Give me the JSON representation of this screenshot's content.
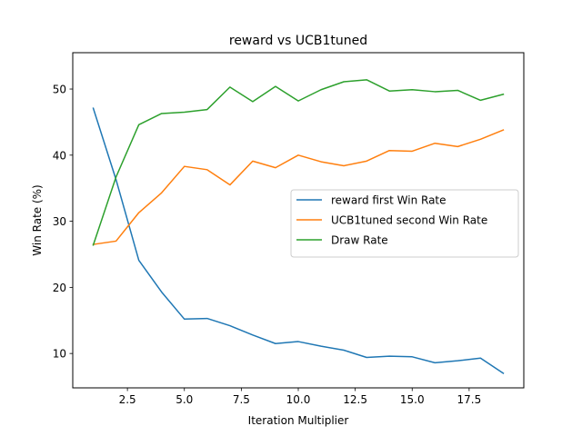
{
  "chart_data": {
    "type": "line",
    "title": "reward vs UCB1tuned",
    "xlabel": "Iteration Multiplier",
    "ylabel": "Win Rate (%)",
    "xlim": [
      0.1,
      19.9
    ],
    "ylim": [
      4.8,
      55.5
    ],
    "xticks": [
      2.5,
      5.0,
      7.5,
      10.0,
      12.5,
      15.0,
      17.5
    ],
    "xtick_labels": [
      "2.5",
      "5.0",
      "7.5",
      "10.0",
      "12.5",
      "15.0",
      "17.5"
    ],
    "yticks": [
      10,
      20,
      30,
      40,
      50
    ],
    "ytick_labels": [
      "10",
      "20",
      "30",
      "40",
      "50"
    ],
    "grid": false,
    "legend_position": "center-right",
    "x": [
      1,
      2,
      3,
      4,
      5,
      6,
      7,
      8,
      9,
      10,
      11,
      12,
      13,
      14,
      15,
      16,
      17,
      18,
      19
    ],
    "series": [
      {
        "name": "reward first Win Rate",
        "color": "#1f77b4",
        "values": [
          47.1,
          36.3,
          24.1,
          19.3,
          15.2,
          15.3,
          14.2,
          12.8,
          11.5,
          11.8,
          11.1,
          10.5,
          9.4,
          9.6,
          9.5,
          8.6,
          8.9,
          9.3,
          7.0
        ]
      },
      {
        "name": "UCB1tuned second Win Rate",
        "color": "#ff7f0e",
        "values": [
          26.5,
          27.0,
          31.3,
          34.3,
          38.3,
          37.8,
          35.5,
          39.1,
          38.1,
          40.0,
          39.0,
          38.4,
          39.1,
          40.7,
          40.6,
          41.8,
          41.3,
          42.4,
          43.8
        ]
      },
      {
        "name": "Draw Rate",
        "color": "#2ca02c",
        "values": [
          26.4,
          36.7,
          44.6,
          46.3,
          46.5,
          46.9,
          50.3,
          48.1,
          50.4,
          48.2,
          49.9,
          51.1,
          51.4,
          49.7,
          49.9,
          49.6,
          49.8,
          48.3,
          49.2
        ]
      }
    ]
  }
}
